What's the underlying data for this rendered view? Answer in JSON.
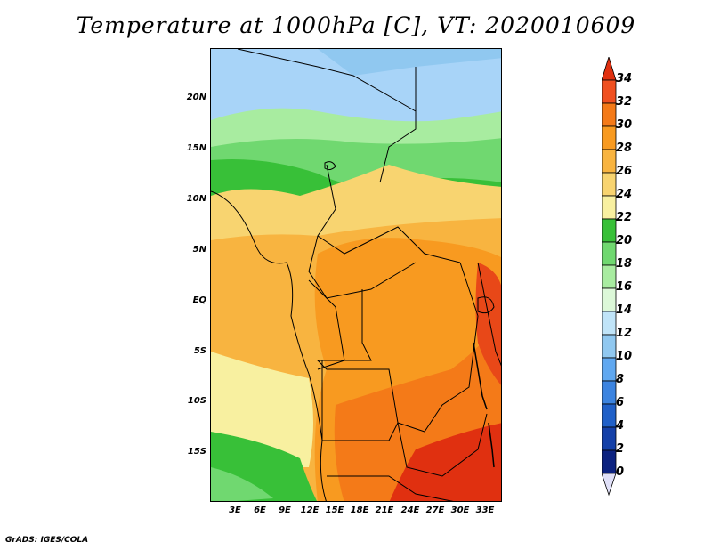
{
  "title": "Temperature at 1000hPa [C], VT: 2020010609",
  "credit": "GrADS: IGES/COLA",
  "lat_labels": [
    "20N",
    "15N",
    "10N",
    "5N",
    "EQ",
    "5S",
    "10S",
    "15S"
  ],
  "lon_labels": [
    "3E",
    "6E",
    "9E",
    "12E",
    "15E",
    "18E",
    "21E",
    "24E",
    "27E",
    "30E",
    "33E"
  ],
  "colorbar": {
    "labels": [
      "34",
      "32",
      "30",
      "28",
      "26",
      "24",
      "22",
      "20",
      "18",
      "16",
      "14",
      "12",
      "10",
      "8",
      "6",
      "4",
      "2",
      "0"
    ],
    "colors": [
      "#e03010",
      "#f05020",
      "#f47a18",
      "#f89a20",
      "#f8b440",
      "#f8d470",
      "#f8f0a0",
      "#38c038",
      "#70d870",
      "#a8eca0",
      "#dcf8d8",
      "#c0e4f8",
      "#90c8f0",
      "#60a8f0",
      "#3c84e0",
      "#2060c8",
      "#1440a8",
      "#0c2280",
      "#0a0860"
    ]
  },
  "palette": {
    "blue_light": "#a8d4f8",
    "blue_mid": "#90c8f0",
    "green_light": "#a8eca0",
    "green_mid": "#70d870",
    "green_dark": "#38c038",
    "yellow": "#f8f0a0",
    "yellow_orange": "#f8d470",
    "orange_light": "#f8b440",
    "orange": "#f89a20",
    "orange_dark": "#f47a18",
    "red": "#e03010"
  }
}
